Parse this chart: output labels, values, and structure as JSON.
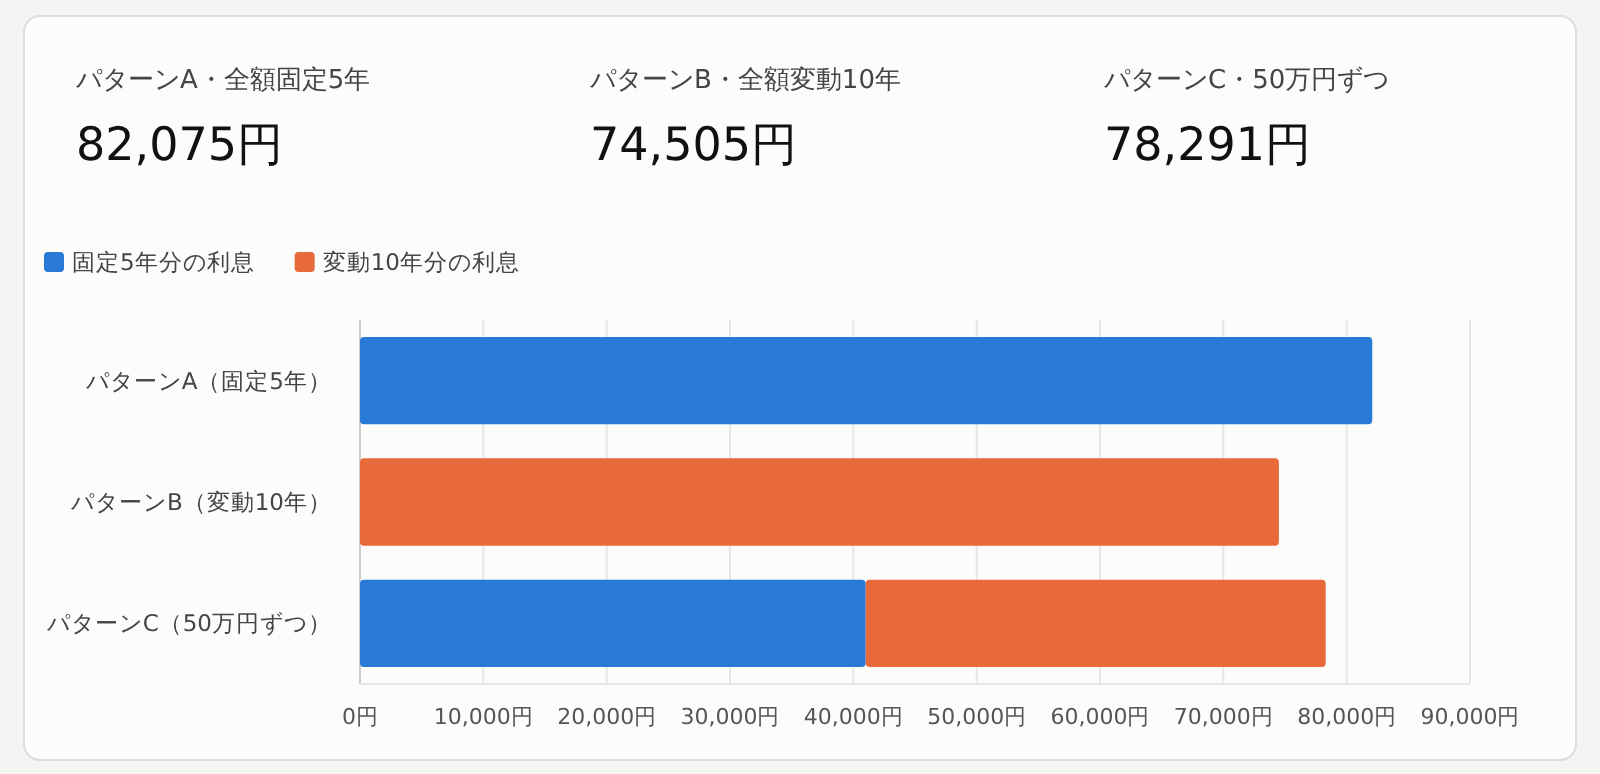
{
  "chart_data": [
    {
      "type": "other",
      "annotations": [
        "パターンA・全額固定5年",
        "82,075円",
        "パターンB・全額変動10年",
        "74,505円",
        "パターンC・50万円ずつ",
        "78,291円"
      ]
    },
    {
      "type": "bar",
      "orientation": "horizontal",
      "stacked": true,
      "categories": [
        "パターンA（固定5年）",
        "パターンB（変動10年）",
        "パターンC（50万円ずつ）"
      ],
      "series": [
        {
          "name": "固定5年分の利息",
          "color": "#2979d6",
          "values": [
            82075,
            null,
            41000
          ]
        },
        {
          "name": "変動10年分の利息",
          "color": "#e8693a",
          "values": [
            null,
            74505,
            37300
          ]
        }
      ],
      "xlim": [
        0,
        90000
      ],
      "xticks": [
        {
          "value": 0,
          "label": "0円"
        },
        {
          "value": 10000,
          "label": "10,000円"
        },
        {
          "value": 20000,
          "label": "20,000円"
        },
        {
          "value": 30000,
          "label": "30,000円"
        },
        {
          "value": 40000,
          "label": "40,000円"
        },
        {
          "value": 50000,
          "label": "50,000円"
        },
        {
          "value": 60000,
          "label": "60,000円"
        },
        {
          "value": 70000,
          "label": "70,000円"
        },
        {
          "value": 80000,
          "label": "80,000円"
        },
        {
          "value": 90000,
          "label": "90,000円"
        }
      ],
      "grid": "x",
      "legend": "top left"
    }
  ]
}
